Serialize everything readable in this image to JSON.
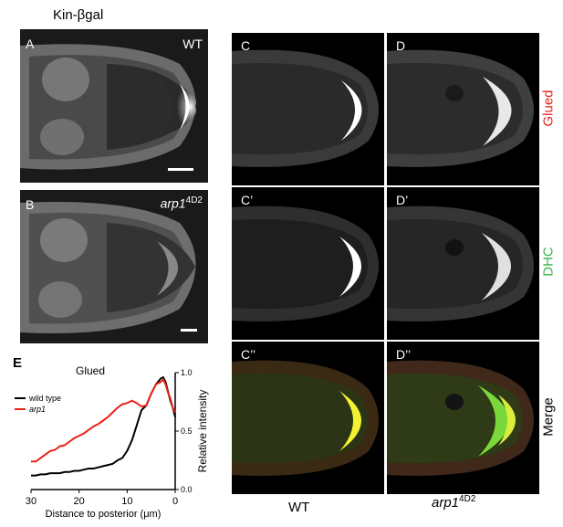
{
  "figure": {
    "top_title": "Kin-βgal",
    "panel_a": {
      "letter": "A",
      "genotype": "WT"
    },
    "panel_b": {
      "letter": "B",
      "genotype_base": "arp1",
      "genotype_sup": "4D2"
    },
    "panel_c": {
      "letter": "C"
    },
    "panel_d": {
      "letter": "D"
    },
    "panel_c1": {
      "letter": "C’"
    },
    "panel_d1": {
      "letter": "D’"
    },
    "panel_c2": {
      "letter": "C’’"
    },
    "panel_d2": {
      "letter": "D’’"
    },
    "row_labels": {
      "glued": "Glued",
      "dhc": "DHC",
      "merge": "Merge"
    },
    "col_labels": {
      "wt": "WT",
      "mut_base": "arp1",
      "mut_sup": "4D2"
    },
    "colors": {
      "glued": "#e8231a",
      "dhc": "#3ab54a",
      "wild_type": "#000000",
      "arp1": "#e8231a"
    }
  },
  "chart_data": {
    "type": "line",
    "panel_letter": "E",
    "title": "Glued",
    "xlabel": "Distance to posterior (μm)",
    "ylabel": "Relative intensity",
    "xlim": [
      30,
      0
    ],
    "ylim": [
      0,
      1.0
    ],
    "x_ticks": [
      "30",
      "20",
      "10",
      "0"
    ],
    "y_ticks": [
      "0.0",
      "0.5",
      "1.0"
    ],
    "legend": {
      "placement": "upper-left",
      "entries": [
        "wild type",
        "arp1"
      ]
    },
    "series": [
      {
        "name": "wild type",
        "color": "#000000",
        "x": [
          30,
          29,
          28,
          27,
          26,
          25,
          24,
          23,
          22,
          21,
          20,
          19,
          18,
          17,
          16,
          15,
          14,
          13,
          12,
          11,
          10,
          9,
          8,
          7,
          6,
          5,
          4,
          3,
          2.5,
          2,
          1.5,
          1,
          0.5,
          0
        ],
        "y": [
          0.12,
          0.12,
          0.13,
          0.13,
          0.14,
          0.14,
          0.14,
          0.15,
          0.15,
          0.16,
          0.16,
          0.17,
          0.18,
          0.18,
          0.19,
          0.2,
          0.21,
          0.22,
          0.25,
          0.27,
          0.33,
          0.42,
          0.55,
          0.68,
          0.72,
          0.82,
          0.9,
          0.95,
          0.96,
          0.92,
          0.84,
          0.76,
          0.7,
          0.62
        ]
      },
      {
        "name": "arp1",
        "color": "#e8231a",
        "x": [
          30,
          29,
          28,
          27,
          26,
          25,
          24,
          23,
          22,
          21,
          20,
          19,
          18,
          17,
          16,
          15,
          14,
          13,
          12,
          11,
          10,
          9,
          8,
          7,
          6,
          5,
          4,
          3,
          2.5,
          2,
          1.5,
          1,
          0.5,
          0
        ],
        "y": [
          0.24,
          0.24,
          0.27,
          0.3,
          0.33,
          0.34,
          0.37,
          0.38,
          0.41,
          0.44,
          0.46,
          0.48,
          0.51,
          0.54,
          0.56,
          0.59,
          0.62,
          0.66,
          0.7,
          0.73,
          0.74,
          0.76,
          0.74,
          0.71,
          0.72,
          0.82,
          0.9,
          0.92,
          0.94,
          0.9,
          0.83,
          0.78,
          0.7,
          0.66
        ]
      }
    ]
  }
}
